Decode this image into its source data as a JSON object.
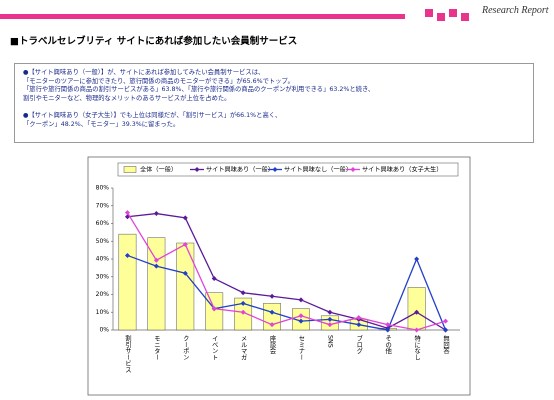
{
  "header": {
    "logo": "Research Report",
    "title": "■トラベルセレブリティ サイトにあれば参加したい会員制サービス"
  },
  "notes": [
    "●【サイト興味あり（一般）】が、サイトにあれば参加してみたい会員制サービスは、",
    "「モニターのツアーに参加できたり、旅行関係の商品のモニターができる」が65.6%でトップ。",
    "「旅行や旅行関係の商品の割引サービスがある」63.8%、「旅行や旅行関係の商品のクーポンが利用できる」63.2%と続き、",
    "割引やモニターなど、物理的なメリットのあるサービスが上位を占めた。",
    "●【サイト興味あり（女子大生）】でも上位は同様だが、「割引サービス」が66.1%と高く、",
    "「クーポン」48.2%、「モニター」39.3%に留まった。"
  ],
  "chart_data": {
    "type": "bar-line",
    "categories": [
      "割引サービス",
      "モニター",
      "クーポン",
      "イベント",
      "メルマガ",
      "座談会",
      "セミナー",
      "SNS",
      "ブログ",
      "その他",
      "特になし",
      "無回答"
    ],
    "series": [
      {
        "name": "全体（一般）",
        "kind": "bar",
        "color": "#ffff99",
        "values": [
          54,
          52,
          49,
          21,
          18,
          15,
          12,
          8,
          6,
          1,
          24,
          0
        ]
      },
      {
        "name": "サイト興味あり（一般）",
        "kind": "line",
        "color": "#5b1a9a",
        "values": [
          63.8,
          65.6,
          63.2,
          29,
          21,
          19,
          17,
          10,
          6,
          1,
          10,
          0
        ]
      },
      {
        "name": "サイト興味なし（一般）",
        "kind": "line",
        "color": "#2340c8",
        "values": [
          42,
          36,
          32,
          12,
          15,
          10,
          5,
          6,
          3,
          0,
          40,
          0
        ]
      },
      {
        "name": "サイト興味あり（女子大生）",
        "kind": "line",
        "color": "#e044d8",
        "values": [
          66.1,
          39.3,
          48.2,
          12,
          10,
          3,
          8,
          3,
          7,
          3,
          0,
          5
        ]
      }
    ],
    "ylim": [
      0,
      80
    ],
    "yticks": [
      {
        "value": 0,
        "label": "0%"
      },
      {
        "value": 10,
        "label": "10%"
      },
      {
        "value": 20,
        "label": "20%"
      },
      {
        "value": 30,
        "label": "30%"
      },
      {
        "value": 40,
        "label": "40%"
      },
      {
        "value": 50,
        "label": "50%"
      },
      {
        "value": 60,
        "label": "60%"
      },
      {
        "value": 70,
        "label": "70%"
      },
      {
        "value": 80,
        "label": "80%"
      }
    ],
    "grid": false
  }
}
